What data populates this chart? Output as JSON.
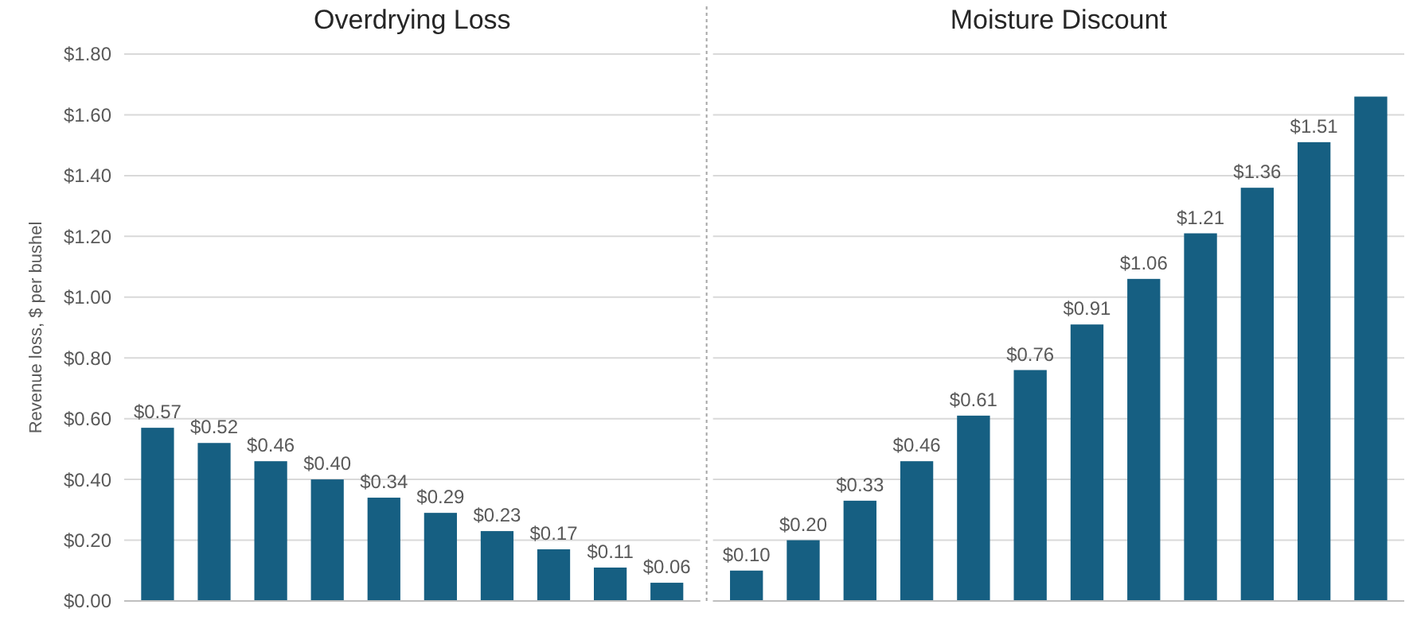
{
  "chart_data": [
    {
      "type": "bar",
      "title": "Overdrying Loss",
      "ylabel": "Revenue loss, $ per bushel",
      "categories": [
        null,
        null,
        null,
        null,
        null,
        null,
        null,
        null,
        null,
        null
      ],
      "values": [
        0.57,
        0.52,
        0.46,
        0.4,
        0.34,
        0.29,
        0.23,
        0.17,
        0.11,
        0.06
      ],
      "color": "#165f82",
      "value_labels": [
        "$0.57",
        "$0.52",
        "$0.46",
        "$0.40",
        "$0.34",
        "$0.29",
        "$0.23",
        "$0.17",
        "$0.11",
        "$0.06"
      ],
      "ylim": [
        0,
        1.8
      ],
      "yticks": [
        {
          "value": 0,
          "label": "$0.00"
        },
        {
          "value": 0.2,
          "label": "$0.20"
        },
        {
          "value": 0.4,
          "label": "$0.40"
        },
        {
          "value": 0.6,
          "label": "$0.60"
        },
        {
          "value": 0.8,
          "label": "$0.80"
        },
        {
          "value": 1.0,
          "label": "$1.00"
        },
        {
          "value": 1.2,
          "label": "$1.20"
        },
        {
          "value": 1.4,
          "label": "$1.40"
        },
        {
          "value": 1.6,
          "label": "$1.60"
        },
        {
          "value": 1.8,
          "label": "$1.80"
        }
      ],
      "grid": "y",
      "tick_labels": "y"
    },
    {
      "type": "bar",
      "title": "Moisture Discount",
      "categories": [
        null,
        null,
        null,
        null,
        null,
        null,
        null,
        null,
        null,
        null,
        null,
        null
      ],
      "values": [
        0.1,
        0.2,
        0.33,
        0.46,
        0.61,
        0.76,
        0.91,
        1.06,
        1.21,
        1.36,
        1.51,
        1.66
      ],
      "color": "#165f82",
      "value_labels": [
        "$0.10",
        "$0.20",
        "$0.33",
        "$0.46",
        "$0.61",
        "$0.76",
        "$0.91",
        "$1.06",
        "$1.21",
        "$1.36",
        "$1.51",
        null
      ],
      "ylim": [
        0,
        1.8
      ],
      "yticks": [
        0,
        0.2,
        0.4,
        0.6,
        0.8,
        1.0,
        1.2,
        1.4,
        1.6,
        1.8
      ],
      "grid": "y",
      "tick_labels": false
    }
  ]
}
